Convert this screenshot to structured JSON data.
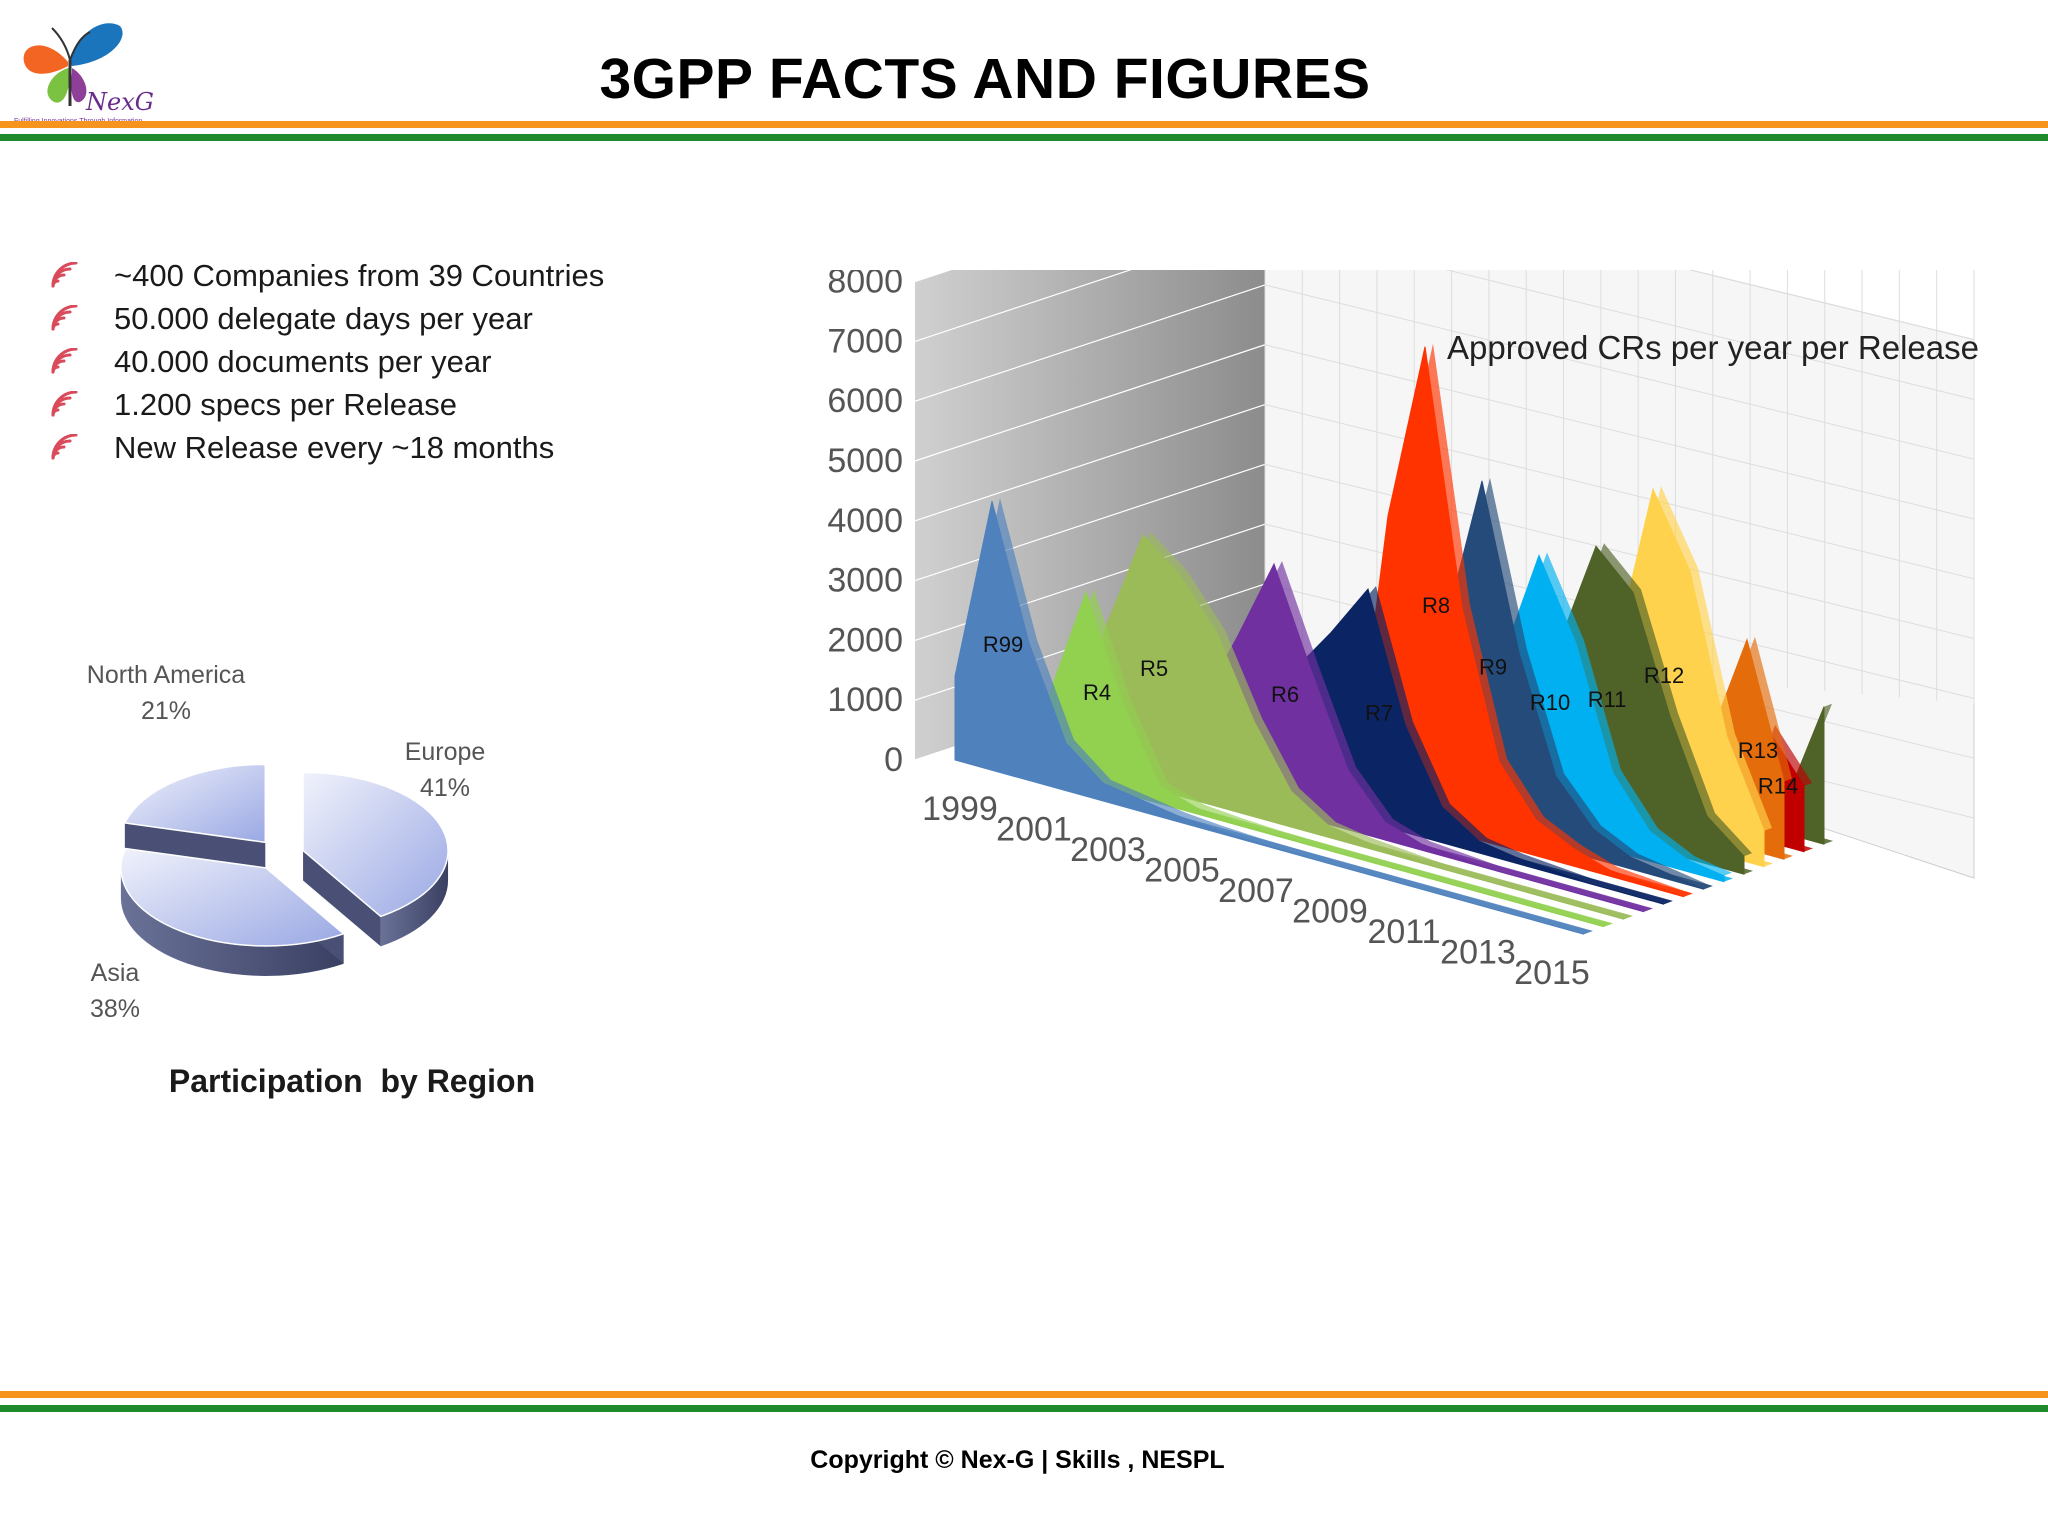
{
  "header": {
    "title": "3GPP FACTS AND FIGURES",
    "logo_text": "NexG",
    "logo_tagline": "Fulfilling Innovations Through Information"
  },
  "bullets": [
    {
      "icon": "wifi-signal-icon",
      "text": "~400 Companies from 39 Countries"
    },
    {
      "icon": "wifi-signal-icon",
      "text": "50.000 delegate days per year"
    },
    {
      "icon": "wifi-signal-icon",
      "text": "40.000 documents per year"
    },
    {
      "icon": "wifi-signal-icon",
      "text": "1.200 specs per Release"
    },
    {
      "icon": "wifi-signal-icon",
      "text": "New Release every ~18 months"
    }
  ],
  "chart_data": [
    {
      "type": "pie",
      "title": "Participation  by Region",
      "categories": [
        "Europe",
        "Asia",
        "North America"
      ],
      "values": [
        41,
        38,
        21
      ],
      "labels": [
        {
          "name": "North America",
          "pct": "21%"
        },
        {
          "name": "Europe",
          "pct": "41%"
        },
        {
          "name": "Asia",
          "pct": "38%"
        }
      ],
      "style": "exploded-3d",
      "colors": [
        "#c5cde8",
        "#a7b5ea",
        "#e0e4f4"
      ]
    },
    {
      "type": "area",
      "style": "3d-stacked-ribbons",
      "title": "Approved CRs per year per Release",
      "x": [
        1999,
        2000,
        2001,
        2002,
        2003,
        2004,
        2005,
        2006,
        2007,
        2008,
        2009,
        2010,
        2011,
        2012,
        2013,
        2014,
        2015,
        2016
      ],
      "x_tick_labels": [
        "1999",
        "2001",
        "2003",
        "2005",
        "2007",
        "2009",
        "2011",
        "2013",
        "2015"
      ],
      "y_tick_labels": [
        "0",
        "1000",
        "2000",
        "3000",
        "4000",
        "5000",
        "6000",
        "7000",
        "8000"
      ],
      "ylim": [
        0,
        8000
      ],
      "grid": true,
      "series": [
        {
          "name": "R99",
          "color": "#4f81bd",
          "values": [
            1400,
            4500,
            2300,
            800,
            300,
            200,
            100,
            50,
            20,
            10,
            0,
            0,
            0,
            0,
            0,
            0,
            0,
            0
          ]
        },
        {
          "name": "R4",
          "color": "#92d050",
          "values": [
            0,
            0,
            1300,
            3200,
            1500,
            300,
            100,
            50,
            20,
            10,
            0,
            0,
            0,
            0,
            0,
            0,
            0,
            0
          ]
        },
        {
          "name": "R5",
          "color": "#9bbb59",
          "values": [
            0,
            0,
            0,
            2500,
            4200,
            3700,
            2900,
            1600,
            600,
            200,
            100,
            50,
            0,
            0,
            0,
            0,
            0,
            0
          ]
        },
        {
          "name": "R6",
          "color": "#7030a0",
          "values": [
            0,
            0,
            0,
            0,
            0,
            1400,
            2700,
            4100,
            2500,
            1000,
            300,
            100,
            50,
            0,
            0,
            0,
            0,
            0
          ]
        },
        {
          "name": "R7",
          "color": "#0b2463",
          "values": [
            0,
            0,
            0,
            0,
            0,
            0,
            0,
            2200,
            3000,
            3900,
            1800,
            600,
            200,
            100,
            50,
            0,
            0,
            0
          ]
        },
        {
          "name": "R8",
          "color": "#ff3300",
          "values": [
            0,
            0,
            0,
            0,
            0,
            0,
            0,
            0,
            0,
            5000,
            8000,
            3800,
            1400,
            600,
            300,
            100,
            50,
            0
          ]
        },
        {
          "name": "R9",
          "color": "#254b7a",
          "values": [
            0,
            0,
            0,
            0,
            0,
            0,
            0,
            0,
            0,
            0,
            3200,
            5800,
            3100,
            1200,
            500,
            200,
            100,
            0
          ]
        },
        {
          "name": "R10",
          "color": "#00b0f0",
          "values": [
            0,
            0,
            0,
            0,
            0,
            0,
            0,
            0,
            0,
            0,
            0,
            2700,
            4600,
            3300,
            1300,
            500,
            200,
            100
          ]
        },
        {
          "name": "R11",
          "color": "#4f6228",
          "values": [
            0,
            0,
            0,
            0,
            0,
            0,
            0,
            0,
            0,
            0,
            0,
            0,
            3000,
            4800,
            4200,
            2300,
            800,
            300
          ]
        },
        {
          "name": "R12",
          "color": "#ffd24d",
          "values": [
            0,
            0,
            0,
            0,
            0,
            0,
            0,
            0,
            0,
            0,
            0,
            0,
            0,
            3000,
            5800,
            4600,
            2000,
            600
          ]
        },
        {
          "name": "R13",
          "color": "#e46c0a",
          "values": [
            0,
            0,
            0,
            0,
            0,
            0,
            0,
            0,
            0,
            0,
            0,
            0,
            0,
            0,
            0,
            1700,
            3500,
            1300
          ]
        },
        {
          "name": "R14",
          "color": "#c00000",
          "values": [
            0,
            0,
            0,
            0,
            0,
            0,
            0,
            0,
            0,
            0,
            0,
            0,
            0,
            0,
            0,
            0,
            1900,
            1100
          ]
        }
      ],
      "extra_ribbon_color": "#4f6228"
    }
  ],
  "footer": {
    "copyright": "Copyright © Nex-G | Skills , NESPL"
  }
}
